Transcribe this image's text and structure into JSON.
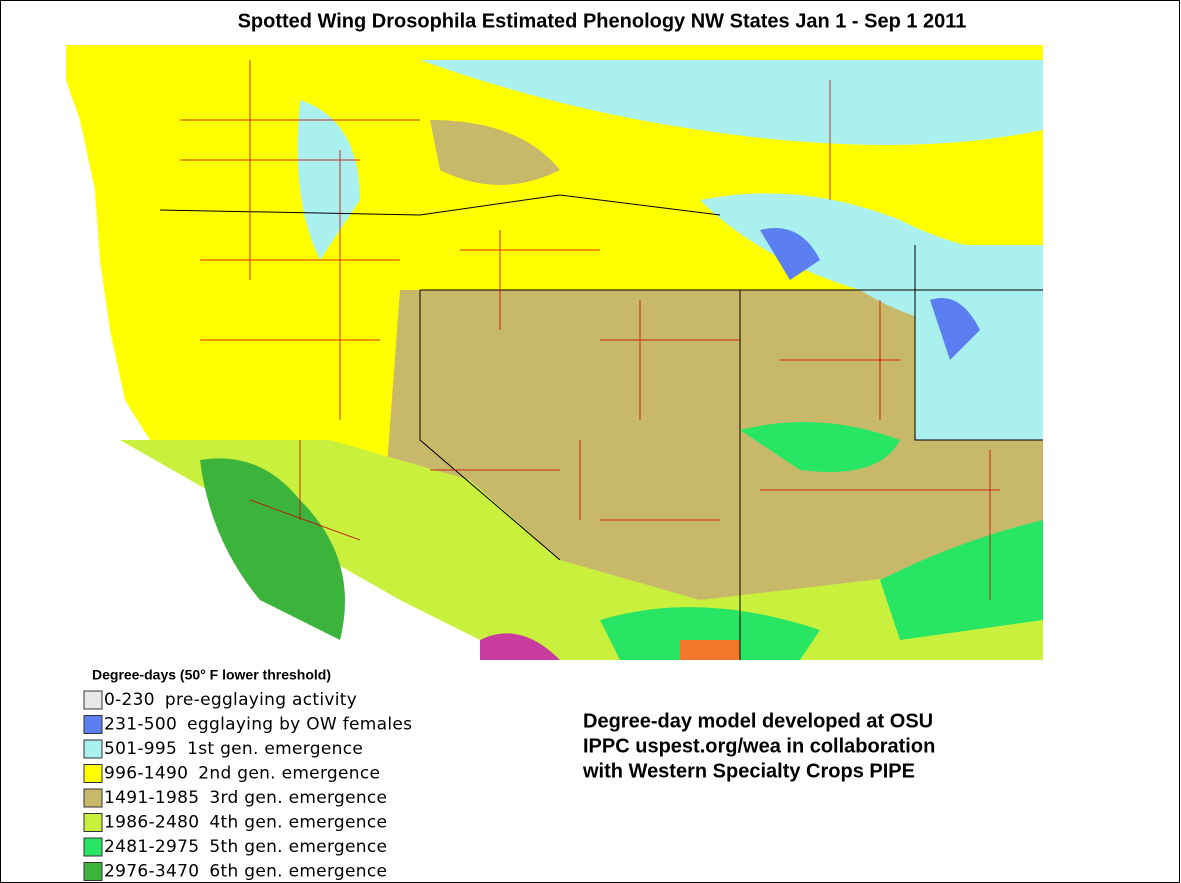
{
  "header": {
    "title": "Spotted Wing Drosophila Estimated Phenology NW States Jan 1 - Sep 1 2011"
  },
  "legend": {
    "title": "Degree-days (50° F lower threshold)",
    "items": [
      {
        "range": "0-230",
        "label": "pre-egglaying activity",
        "color": "#e8e8e8"
      },
      {
        "range": "231-500",
        "label": "egglaying by OW females",
        "color": "#5b7ef0"
      },
      {
        "range": "501-995",
        "label": "1st gen. emergence",
        "color": "#aaf0ee"
      },
      {
        "range": "996-1490",
        "label": "2nd gen. emergence",
        "color": "#ffff00"
      },
      {
        "range": "1491-1985",
        "label": "3rd gen. emergence",
        "color": "#c8b96a"
      },
      {
        "range": "1986-2480",
        "label": "4th gen. emergence",
        "color": "#c8f03c"
      },
      {
        "range": "2481-2975",
        "label": "5th gen. emergence",
        "color": "#28e664"
      },
      {
        "range": "2976-3470",
        "label": "6th gen. emergence",
        "color": "#3cb43c"
      }
    ]
  },
  "credit": {
    "lines": [
      "Degree-day model developed at OSU",
      "IPPC uspest.org/wea in collaboration",
      "with Western Specialty Crops PIPE"
    ]
  }
}
